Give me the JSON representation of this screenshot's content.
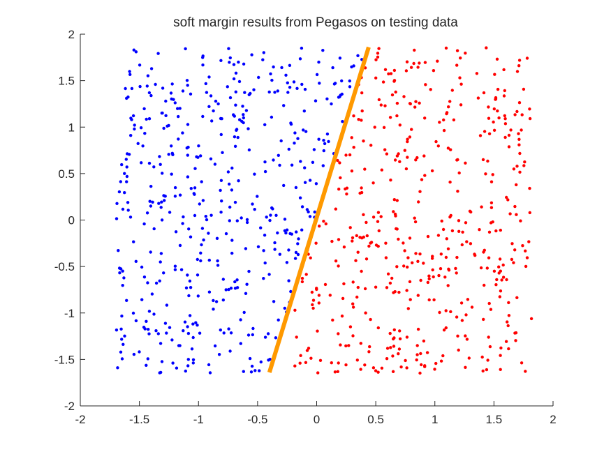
{
  "chart_data": {
    "type": "scatter",
    "title": "soft margin results from Pegasos on testing data",
    "xlabel": "",
    "ylabel": "",
    "xlim": [
      -2,
      2
    ],
    "ylim": [
      -2,
      2
    ],
    "xticks": [
      "-2",
      "-1.5",
      "-1",
      "-0.5",
      "0",
      "0.5",
      "1",
      "1.5",
      "2"
    ],
    "yticks": [
      "-2",
      "-1.5",
      "-1",
      "-0.5",
      "0",
      "0.5",
      "1",
      "1.5",
      "2"
    ],
    "grid": false,
    "legend": "none",
    "colors": {
      "class_pos": "#0000ff",
      "class_neg": "#ff0000",
      "boundary": "#ff9900",
      "axis": "#262626"
    },
    "boundary_line": {
      "x": [
        -0.4,
        0.44
      ],
      "y": [
        -1.64,
        1.86
      ]
    },
    "sampling": {
      "x_range": [
        -1.7,
        1.82
      ],
      "y_range": [
        -1.65,
        1.86
      ],
      "points_per_class": 470
    }
  }
}
